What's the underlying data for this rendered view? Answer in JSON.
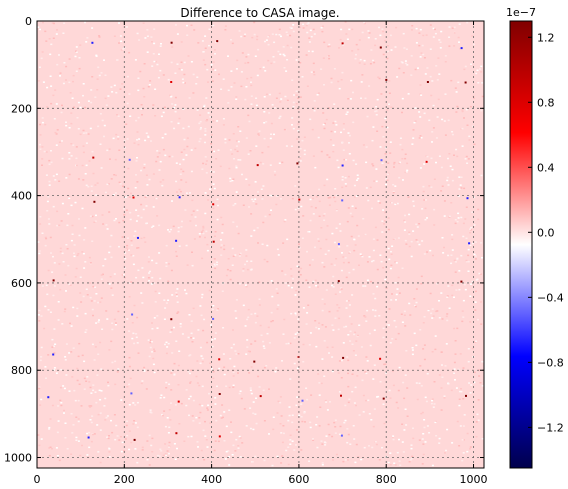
{
  "chart_data": {
    "type": "heatmap",
    "title": "Difference to CASA image.",
    "xlabel": "",
    "ylabel": "",
    "xlim": [
      0,
      1024
    ],
    "ylim": [
      1024,
      0
    ],
    "x_ticks": [
      "0",
      "200",
      "400",
      "600",
      "800",
      "1000"
    ],
    "y_ticks": [
      "0",
      "200",
      "400",
      "600",
      "800",
      "1000"
    ],
    "x_tick_values": [
      0,
      200,
      400,
      600,
      800,
      1000
    ],
    "y_tick_values": [
      0,
      200,
      400,
      600,
      800,
      1000
    ],
    "grid": true,
    "colorbar": {
      "label": "",
      "offset_text": "1e−7",
      "range": [
        -1.45,
        1.3
      ],
      "ticks": [
        "1.2",
        "0.8",
        "0.4",
        "0.0",
        "−0.4",
        "−0.8",
        "−1.2"
      ],
      "tick_values": [
        1.2,
        0.8,
        0.4,
        0.0,
        -0.4,
        -0.8,
        -1.2
      ],
      "colormap": "seismic",
      "colors": {
        "low": "#00004c",
        "mid_low": "#0000ff",
        "zero": "#ffffff",
        "mid_high": "#ff0000",
        "high": "#800000"
      }
    },
    "background_value_note": "predominantly small positive differences near 0.1e-7 with sparse outliers",
    "dominant_color": "#ffd8d8"
  }
}
